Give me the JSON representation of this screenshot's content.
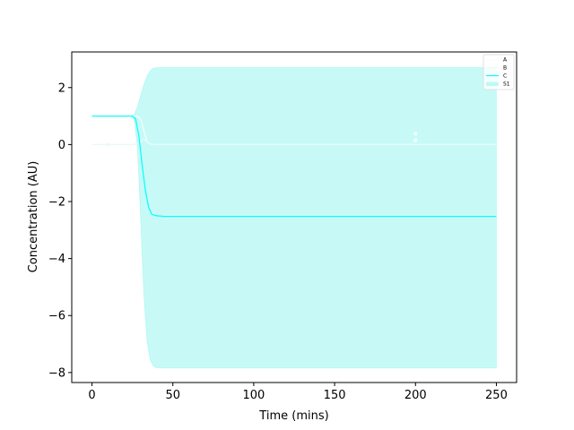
{
  "chart_data": {
    "type": "line",
    "title": "",
    "xlabel": "Time (mins)",
    "ylabel": "Concentration (AU)",
    "xlim": [
      -12.5,
      262.5
    ],
    "ylim": [
      -8.35,
      3.25
    ],
    "xticks": [
      0,
      50,
      100,
      150,
      200,
      250
    ],
    "yticks": [
      -8,
      -6,
      -4,
      -2,
      0,
      2
    ],
    "grid": false,
    "legend_position": "top-right",
    "series": [
      {
        "name": "A",
        "color": "#f0fffe",
        "x": [
          0,
          25,
          28,
          30,
          32,
          34,
          36,
          40,
          50,
          100,
          150,
          200,
          250
        ],
        "y": [
          1,
          1,
          1,
          0.9,
          0.5,
          0.1,
          0.02,
          0,
          0,
          0,
          0,
          0,
          0
        ]
      },
      {
        "name": "B",
        "color": "#e6fbf8",
        "x": [
          0,
          20,
          25,
          28,
          30,
          32,
          34,
          36,
          40,
          50,
          100,
          150,
          200,
          250
        ],
        "y": [
          0,
          0,
          0,
          0.02,
          0.1,
          0.2,
          0.1,
          0.03,
          0,
          0,
          0,
          0,
          0,
          0
        ]
      },
      {
        "name": "C",
        "color": "#00ffff",
        "x": [
          0,
          25,
          27,
          29,
          31,
          33,
          35,
          37,
          40,
          45,
          50,
          100,
          150,
          200,
          250
        ],
        "y": [
          1,
          1,
          0.9,
          0.3,
          -0.7,
          -1.6,
          -2.2,
          -2.45,
          -2.5,
          -2.52,
          -2.52,
          -2.52,
          -2.52,
          -2.52,
          -2.52
        ]
      }
    ],
    "band": {
      "name": "S1",
      "color": "#00e6d8",
      "opacity": 0.22,
      "x": [
        0,
        24,
        26,
        28,
        30,
        32,
        34,
        36,
        38,
        40,
        45,
        50,
        100,
        150,
        200,
        250
      ],
      "lower": [
        1,
        1,
        0.9,
        0,
        -2.5,
        -5.2,
        -6.9,
        -7.55,
        -7.78,
        -7.83,
        -7.84,
        -7.84,
        -7.84,
        -7.84,
        -7.84,
        -7.84
      ],
      "upper": [
        1,
        1,
        1.05,
        1.3,
        1.7,
        2.1,
        2.4,
        2.6,
        2.68,
        2.7,
        2.7,
        2.7,
        2.7,
        2.7,
        2.7,
        2.7
      ]
    },
    "markers": [
      {
        "x": 10,
        "y": 0,
        "color": "#e8fbf8"
      },
      {
        "x": 200,
        "y": 0.38,
        "color": "#f0fffe"
      },
      {
        "x": 200,
        "y": 0.15,
        "color": "#f0fffe"
      }
    ],
    "legend": [
      "A",
      "B",
      "C",
      "S1"
    ]
  }
}
